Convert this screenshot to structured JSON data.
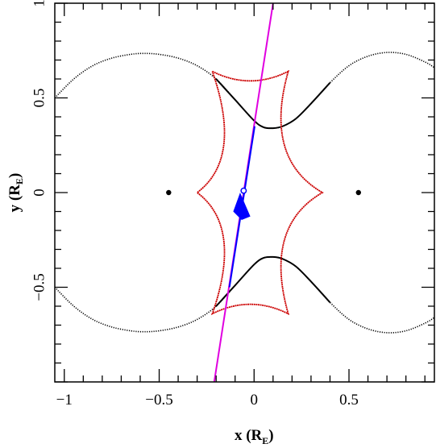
{
  "chart_data": {
    "type": "line",
    "xlabel": "x (R",
    "xlabel_sub": "E",
    "xlabel_end": ")",
    "ylabel": "y (R",
    "ylabel_sub": "E",
    "ylabel_end": ")",
    "xlim": [
      -1.05,
      0.95
    ],
    "ylim": [
      -1.0,
      1.0
    ],
    "x_ticks": [
      {
        "value": -1,
        "label": "−1"
      },
      {
        "value": -0.5,
        "label": "−0.5"
      },
      {
        "value": 0,
        "label": "0"
      },
      {
        "value": 0.5,
        "label": "0.5"
      }
    ],
    "y_ticks": [
      {
        "value": -0.5,
        "label": "−0.5"
      },
      {
        "value": 0,
        "label": "0"
      },
      {
        "value": 0.5,
        "label": "0.5"
      },
      {
        "value": 1,
        "label": "1"
      }
    ],
    "lens_points": [
      {
        "x": -0.45,
        "y": 0
      },
      {
        "x": 0.55,
        "y": 0
      }
    ],
    "critical_curve_upper": {
      "x": [
        -1.05,
        -0.95,
        -0.85,
        -0.75,
        -0.65,
        -0.58,
        -0.5,
        -0.4,
        -0.3,
        -0.2,
        -0.1,
        0.0,
        0.05,
        0.1,
        0.15,
        0.22,
        0.3,
        0.4,
        0.5,
        0.6,
        0.7,
        0.8,
        0.9,
        0.95
      ],
      "y": [
        0.5,
        0.6,
        0.67,
        0.71,
        0.73,
        0.735,
        0.73,
        0.71,
        0.67,
        0.6,
        0.49,
        0.38,
        0.345,
        0.34,
        0.35,
        0.39,
        0.47,
        0.58,
        0.67,
        0.72,
        0.74,
        0.73,
        0.69,
        0.66
      ]
    },
    "critical_curve_lower": {
      "x": [
        -1.05,
        -0.95,
        -0.85,
        -0.75,
        -0.65,
        -0.58,
        -0.5,
        -0.4,
        -0.3,
        -0.2,
        -0.1,
        0.0,
        0.05,
        0.1,
        0.15,
        0.22,
        0.3,
        0.4,
        0.5,
        0.6,
        0.7,
        0.8,
        0.9,
        0.95
      ],
      "y": [
        -0.5,
        -0.6,
        -0.67,
        -0.71,
        -0.73,
        -0.735,
        -0.73,
        -0.71,
        -0.67,
        -0.6,
        -0.49,
        -0.38,
        -0.345,
        -0.34,
        -0.35,
        -0.39,
        -0.47,
        -0.58,
        -0.67,
        -0.72,
        -0.74,
        -0.73,
        -0.69,
        -0.66
      ]
    },
    "caustic": {
      "cusps": [
        {
          "x": -0.22,
          "y": 0.64
        },
        {
          "x": 0.18,
          "y": 0.64
        },
        {
          "x": 0.36,
          "y": 0.0
        },
        {
          "x": 0.18,
          "y": -0.64
        },
        {
          "x": -0.22,
          "y": -0.64
        },
        {
          "x": -0.3,
          "y": 0.0
        }
      ],
      "edge_midpoints": [
        {
          "x": -0.02,
          "y": 0.59
        },
        {
          "x": 0.16,
          "y": 0.25
        },
        {
          "x": 0.16,
          "y": -0.25
        },
        {
          "x": -0.02,
          "y": -0.59
        },
        {
          "x": -0.16,
          "y": -0.25
        },
        {
          "x": -0.16,
          "y": 0.25
        }
      ]
    },
    "source_trajectory": {
      "x": [
        -0.21,
        0.1
      ],
      "y": [
        -1.0,
        1.0
      ]
    },
    "trajectory_highlight": {
      "x": [
        -0.13,
        0.003
      ],
      "y": [
        -0.5,
        0.35
      ]
    },
    "source_position": {
      "x": -0.055,
      "y": 0.01
    },
    "direction_arrow": {
      "x": -0.065,
      "y": -0.04
    },
    "colors": {
      "axes": "#000000",
      "critical_curve": "#000000",
      "caustic": "#cc0000",
      "trajectory": "#e000e0",
      "highlight": "#0000ff",
      "lens": "#000000"
    }
  }
}
